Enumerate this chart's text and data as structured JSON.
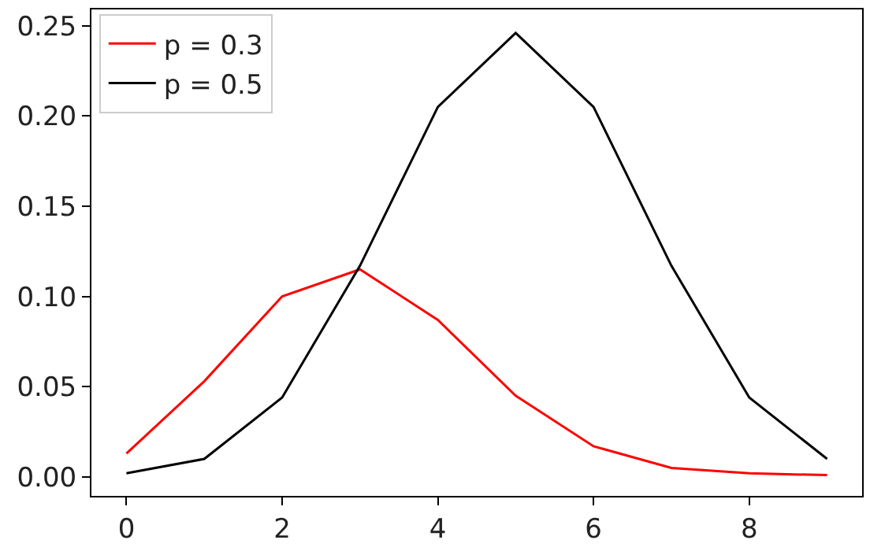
{
  "chart_data": {
    "type": "line",
    "x": [
      0,
      1,
      2,
      3,
      4,
      5,
      6,
      7,
      8,
      9
    ],
    "series": [
      {
        "name": "p = 0.3",
        "color": "#ff0000",
        "values": [
          0.013,
          0.053,
          0.1,
          0.115,
          0.087,
          0.045,
          0.017,
          0.005,
          0.002,
          0.001
        ]
      },
      {
        "name": "p = 0.5",
        "color": "#000000",
        "values": [
          0.002,
          0.01,
          0.044,
          0.117,
          0.205,
          0.246,
          0.205,
          0.117,
          0.044,
          0.01
        ]
      }
    ],
    "xlim": [
      -0.45,
      9.45
    ],
    "xticks": [
      0,
      2,
      4,
      6,
      8
    ],
    "ylim": [
      -0.0105,
      0.259
    ],
    "yticks": [
      {
        "value": 0,
        "label": "0.00"
      },
      {
        "value": 0.05,
        "label": "0.05"
      },
      {
        "value": 0.1,
        "label": "0.10"
      },
      {
        "value": 0.15,
        "label": "0.15"
      },
      {
        "value": 0.2,
        "label": "0.20"
      },
      {
        "value": 0.25,
        "label": "0.25"
      }
    ],
    "grid": false,
    "legend": "top left",
    "marker": "none",
    "line_style": "solid"
  }
}
